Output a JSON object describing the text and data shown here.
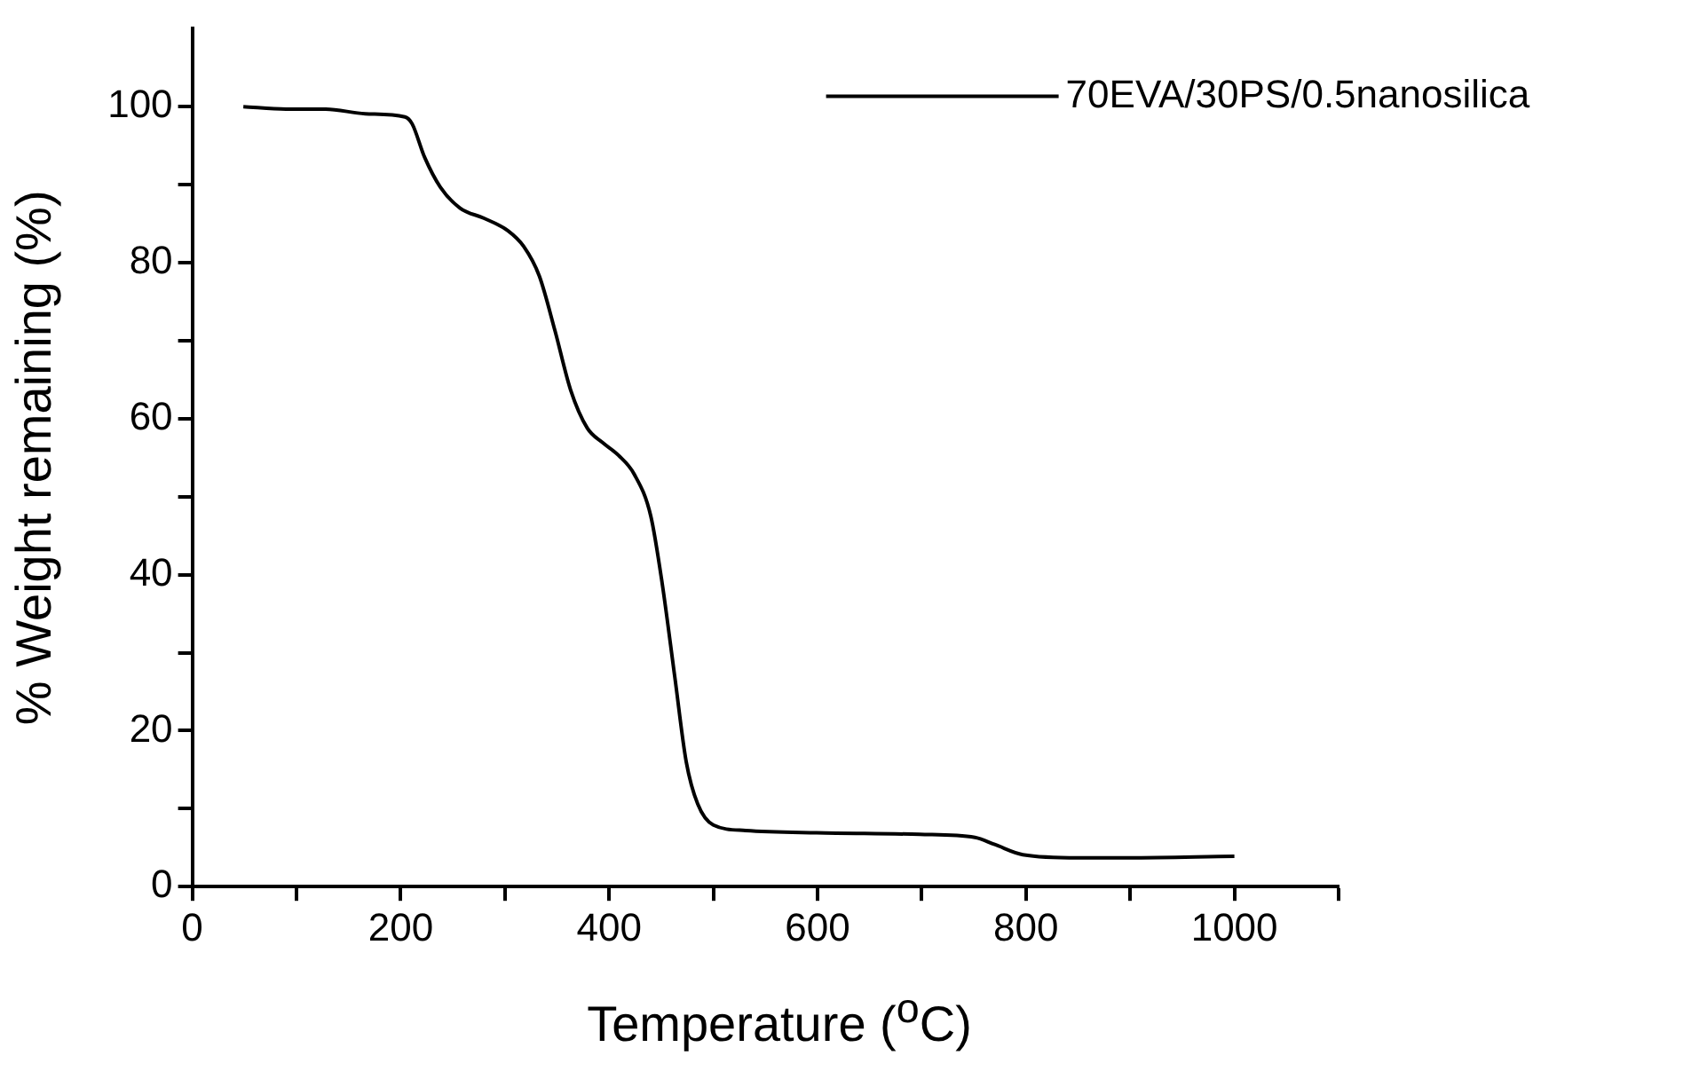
{
  "chart_data": {
    "type": "line",
    "xlabel": "Temperature ($^{o}$C)",
    "ylabel": "% Weight remaining (%)",
    "xlim": [
      0,
      1100
    ],
    "xticks": [
      0,
      {
        "value": 100,
        "label": null
      },
      200,
      {
        "value": 300,
        "label": null
      },
      400,
      {
        "value": 500,
        "label": null
      },
      600,
      {
        "value": 700,
        "label": null
      },
      800,
      {
        "value": 900,
        "label": null
      },
      1000,
      {
        "value": 1100,
        "label": null
      }
    ],
    "ylim": [
      0,
      110
    ],
    "yticks": [
      0,
      {
        "value": 10,
        "label": null
      },
      20,
      {
        "value": 30,
        "label": null
      },
      40,
      {
        "value": 50,
        "label": null
      },
      60,
      {
        "value": 70,
        "label": null
      },
      80,
      {
        "value": 90,
        "label": null
      },
      100
    ],
    "grid": false,
    "legend": "top right",
    "marker": "none",
    "line_style": "solid",
    "series": [
      {
        "name": "70EVA/30PS/0.5nanosilica",
        "color": "#000000",
        "x": [
          49,
          90,
          128,
          166,
          204,
          211,
          223,
          238,
          257,
          280,
          303,
          318,
          333,
          348,
          363,
          379,
          394,
          409,
          424,
          440,
          451,
          463,
          474,
          485,
          500,
          531,
          599,
          698,
          751,
          770,
          797,
          850,
          888,
          1000
        ],
        "values": [
          100,
          99.7,
          99.7,
          99.1,
          98.7,
          97.8,
          93.5,
          89.7,
          87,
          85.7,
          84.1,
          82.1,
          78.3,
          71.3,
          63.7,
          58.8,
          56.9,
          55.3,
          52.9,
          47.5,
          38.8,
          26.9,
          16,
          10.6,
          7.9,
          7.2,
          6.9,
          6.7,
          6.3,
          5.4,
          4.1,
          3.7,
          3.7,
          3.9
        ]
      }
    ]
  }
}
